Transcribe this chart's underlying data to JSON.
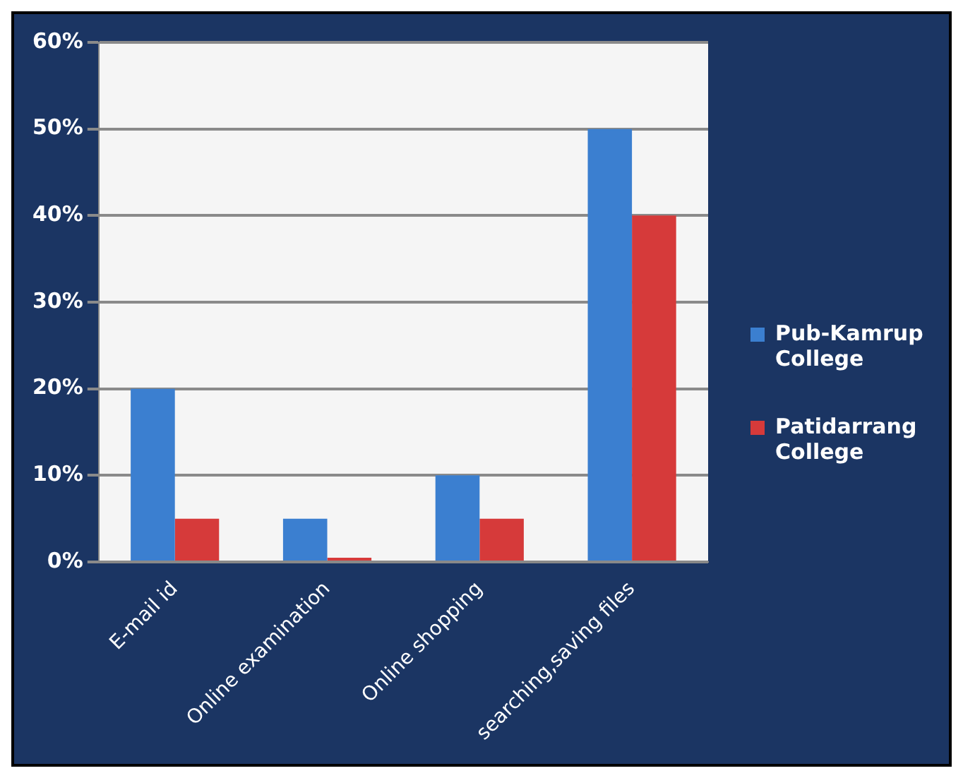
{
  "chart_data": {
    "type": "bar",
    "categories": [
      "E-mail id",
      "Online examination",
      "Online shopping",
      "searching,saving files"
    ],
    "series": [
      {
        "name": "Pub-Kamrup College",
        "color": "#3b7fd0",
        "values": [
          20,
          5,
          10,
          50
        ]
      },
      {
        "name": "Patidarrang College",
        "color": "#d63a3a",
        "values": [
          5,
          0.5,
          5,
          40
        ]
      }
    ],
    "ylim": [
      0,
      60
    ],
    "yticks": [
      {
        "value": 0,
        "label": "0%"
      },
      {
        "value": 10,
        "label": "10%"
      },
      {
        "value": 20,
        "label": "20%"
      },
      {
        "value": 30,
        "label": "30%"
      },
      {
        "value": 40,
        "label": "40%"
      },
      {
        "value": 50,
        "label": "50%"
      },
      {
        "value": 60,
        "label": "60%"
      }
    ],
    "grid": "y",
    "legend": "right"
  }
}
